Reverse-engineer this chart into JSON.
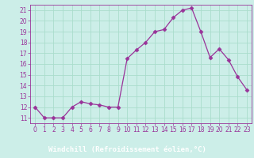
{
  "x": [
    0,
    1,
    2,
    3,
    4,
    5,
    6,
    7,
    8,
    9,
    10,
    11,
    12,
    13,
    14,
    15,
    16,
    17,
    18,
    19,
    20,
    21,
    22,
    23
  ],
  "y": [
    12,
    11,
    11,
    11,
    12,
    12.5,
    12.3,
    12.2,
    12,
    12,
    16.5,
    17.3,
    18,
    19,
    19.2,
    20.3,
    21,
    21.2,
    19,
    16.6,
    17.4,
    16.4,
    14.8,
    13.6
  ],
  "line_color": "#993399",
  "marker": "D",
  "marker_size": 2.5,
  "bg_color": "#cceee8",
  "grid_color": "#aaddcc",
  "axis_bar_color": "#993399",
  "xlabel": "Windchill (Refroidissement éolien,°C)",
  "xlim": [
    -0.5,
    23.5
  ],
  "ylim": [
    10.5,
    21.5
  ],
  "yticks": [
    11,
    12,
    13,
    14,
    15,
    16,
    17,
    18,
    19,
    20,
    21
  ],
  "xticks": [
    0,
    1,
    2,
    3,
    4,
    5,
    6,
    7,
    8,
    9,
    10,
    11,
    12,
    13,
    14,
    15,
    16,
    17,
    18,
    19,
    20,
    21,
    22,
    23
  ],
  "tick_label_fontsize": 5.5,
  "xlabel_fontsize": 6.5,
  "label_color": "#ffffff"
}
